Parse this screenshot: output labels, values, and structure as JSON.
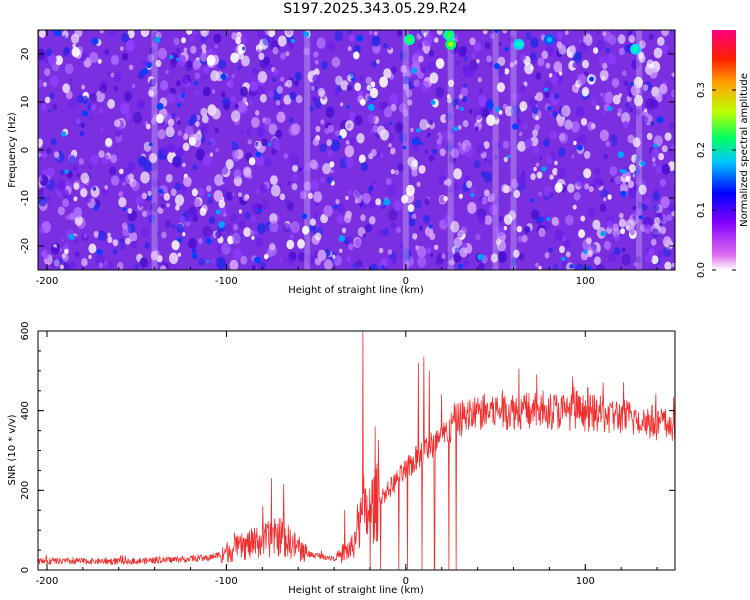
{
  "title": "S197.2025.343.05.29.R24",
  "chart_data": [
    {
      "type": "heatmap",
      "title": "S197.2025.343.05.29.R24",
      "xlabel": "Height of straight line (km)",
      "ylabel": "Frequency (Hz)",
      "xlim": [
        -205,
        150
      ],
      "ylim": [
        -25,
        25
      ],
      "xticks": [
        -200,
        -100,
        0,
        100
      ],
      "xtick_labels": [
        "-200",
        "-100",
        "0",
        "100"
      ],
      "yticks": [
        -20,
        -10,
        0,
        10,
        20
      ],
      "ytick_labels": [
        "-20",
        "-10",
        "0",
        "10",
        "20"
      ],
      "colorbar": {
        "label": "Normalized spectral amplitude",
        "range": [
          0,
          0.4
        ],
        "ticks": [
          0,
          0.1,
          0.2,
          0.3
        ],
        "tick_labels": [
          "0.0",
          "0.1",
          "0.2",
          "0.3"
        ],
        "colors": [
          "#ffffff",
          "#e070f0",
          "#8000ff",
          "#0000ff",
          "#00e0ff",
          "#00ff60",
          "#c0ff00",
          "#ffa000",
          "#ff2000",
          "#ff0080"
        ]
      },
      "hot_spots": [
        {
          "x": 2,
          "y": 23,
          "value": 0.22
        },
        {
          "x": 25,
          "y": 22,
          "value": 0.26
        },
        {
          "x": 24,
          "y": 24,
          "value": 0.2
        },
        {
          "x": 63,
          "y": 22,
          "value": 0.16
        },
        {
          "x": 80,
          "y": 23,
          "value": 0.12
        },
        {
          "x": 128,
          "y": 21,
          "value": 0.14
        }
      ]
    },
    {
      "type": "line",
      "xlabel": "Height of straight line (km)",
      "ylabel": "SNR (10 * v/v)",
      "xlim": [
        -205,
        150
      ],
      "ylim": [
        0,
        600
      ],
      "xticks": [
        -200,
        -100,
        0,
        100
      ],
      "xtick_labels": [
        "-200",
        "-100",
        "0",
        "100"
      ],
      "yticks": [
        0,
        200,
        400,
        600
      ],
      "ytick_labels": [
        "0",
        "200",
        "400",
        "600"
      ],
      "series": [
        {
          "name": "SNR",
          "color": "#f03030",
          "baseline_x": [
            -205,
            -150,
            -110,
            -90,
            -70,
            -55,
            -40,
            -30,
            -25,
            -20,
            -10,
            0,
            10,
            20,
            30,
            40,
            50,
            60,
            80,
            100,
            120,
            140,
            150
          ],
          "baseline_y": [
            22,
            22,
            30,
            60,
            85,
            40,
            30,
            55,
            120,
            150,
            200,
            250,
            300,
            330,
            380,
            395,
            400,
            400,
            400,
            395,
            385,
            370,
            360
          ],
          "spikes": [
            {
              "x": -75,
              "y": 230
            },
            {
              "x": -68,
              "y": 215
            },
            {
              "x": -34,
              "y": 150
            },
            {
              "x": -24,
              "y": 600
            },
            {
              "x": -17,
              "y": 360
            },
            {
              "x": 7,
              "y": 520
            },
            {
              "x": 10,
              "y": 535
            },
            {
              "x": 13,
              "y": 500
            },
            {
              "x": 20,
              "y": 440
            },
            {
              "x": 63,
              "y": 505
            },
            {
              "x": 73,
              "y": 490
            },
            {
              "x": 93,
              "y": 485
            },
            {
              "x": 110,
              "y": 470
            }
          ],
          "dropouts": [
            -20,
            -14,
            -4,
            1,
            9,
            16,
            24,
            28
          ]
        }
      ]
    }
  ]
}
